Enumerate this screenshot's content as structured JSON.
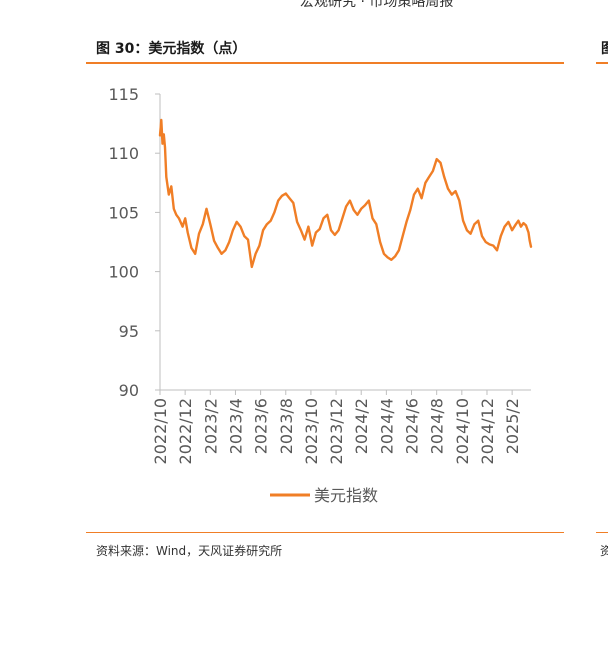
{
  "header_fragment": "宏观研究 · 市场策略周报",
  "figure_title": "图 30：美元指数（点）",
  "next_figure_title_fragment": "图",
  "source_text": "资料来源：Wind，天风证券研究所",
  "next_source_fragment": "资",
  "colors": {
    "accent": "#f07e26",
    "axis": "#bfbfbf",
    "tick_text": "#595959"
  },
  "chart_data": {
    "type": "line",
    "title": "美元指数（点）",
    "xlabel": "",
    "ylabel": "",
    "ylim": [
      90,
      115
    ],
    "yticks": [
      90,
      95,
      100,
      105,
      110,
      115
    ],
    "ytick_labels": [
      "90",
      "95",
      "100",
      "105",
      "110",
      "115"
    ],
    "x_range": [
      0,
      29.5
    ],
    "xticks": [
      0,
      2,
      4,
      6,
      8,
      10,
      12,
      14,
      16,
      18,
      20,
      22,
      24,
      26,
      28
    ],
    "xtick_labels": [
      "2022/10",
      "2022/12",
      "2023/2",
      "2023/4",
      "2023/6",
      "2023/8",
      "2023/10",
      "2023/12",
      "2024/2",
      "2024/4",
      "2024/6",
      "2024/8",
      "2024/10",
      "2024/12",
      "2025/2"
    ],
    "legend": "bottom-center",
    "series": [
      {
        "name": "美元指数",
        "x": [
          0.0,
          0.1,
          0.2,
          0.3,
          0.4,
          0.5,
          0.7,
          0.9,
          1.1,
          1.3,
          1.5,
          1.8,
          2.0,
          2.2,
          2.5,
          2.8,
          3.1,
          3.4,
          3.7,
          4.0,
          4.3,
          4.6,
          4.9,
          5.2,
          5.5,
          5.8,
          6.1,
          6.4,
          6.7,
          7.0,
          7.3,
          7.6,
          7.9,
          8.2,
          8.5,
          8.8,
          9.1,
          9.4,
          9.7,
          10.0,
          10.3,
          10.6,
          10.9,
          11.2,
          11.5,
          11.8,
          12.1,
          12.4,
          12.7,
          13.0,
          13.3,
          13.6,
          13.9,
          14.2,
          14.5,
          14.8,
          15.1,
          15.4,
          15.7,
          16.0,
          16.3,
          16.6,
          16.9,
          17.2,
          17.5,
          17.8,
          18.1,
          18.4,
          18.7,
          19.0,
          19.3,
          19.6,
          19.9,
          20.2,
          20.5,
          20.8,
          21.1,
          21.4,
          21.7,
          22.0,
          22.3,
          22.6,
          22.9,
          23.2,
          23.5,
          23.8,
          24.1,
          24.4,
          24.7,
          25.0,
          25.3,
          25.6,
          25.9,
          26.2,
          26.5,
          26.8,
          27.1,
          27.4,
          27.7,
          28.0,
          28.3,
          28.5,
          28.7,
          28.9,
          29.1,
          29.3,
          29.4,
          29.5
        ],
        "values": [
          111.5,
          112.8,
          110.8,
          111.6,
          110.5,
          108.0,
          106.5,
          107.2,
          105.3,
          104.8,
          104.5,
          103.8,
          104.5,
          103.3,
          102.0,
          101.5,
          103.2,
          104.0,
          105.3,
          104.0,
          102.6,
          102.0,
          101.5,
          101.8,
          102.5,
          103.5,
          104.2,
          103.8,
          103.0,
          102.7,
          100.4,
          101.5,
          102.2,
          103.5,
          104.0,
          104.3,
          105.0,
          106.0,
          106.4,
          106.6,
          106.2,
          105.8,
          104.2,
          103.5,
          102.7,
          103.8,
          102.2,
          103.3,
          103.6,
          104.5,
          104.8,
          103.5,
          103.1,
          103.5,
          104.5,
          105.5,
          106.0,
          105.2,
          104.8,
          105.3,
          105.6,
          106.0,
          104.5,
          104.0,
          102.5,
          101.5,
          101.2,
          101.0,
          101.3,
          101.8,
          103.0,
          104.2,
          105.2,
          106.5,
          107.0,
          106.2,
          107.5,
          108.0,
          108.5,
          109.5,
          109.2,
          108.0,
          107.0,
          106.5,
          106.8,
          106.0,
          104.3,
          103.5,
          103.2,
          104.0,
          104.3,
          103.0,
          102.5,
          102.3,
          102.2,
          101.8,
          103.0,
          103.8,
          104.2,
          103.5,
          104.0,
          104.3,
          103.8,
          104.1,
          103.9,
          103.3,
          102.6,
          102.1
        ]
      }
    ]
  }
}
